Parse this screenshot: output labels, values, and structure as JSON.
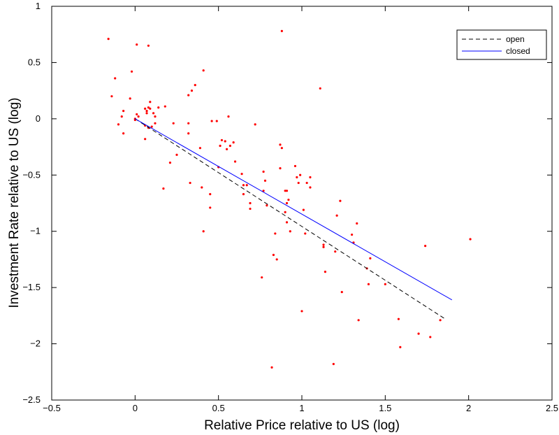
{
  "chart_data": {
    "type": "scatter",
    "xlabel": "Relative Price relative to US (log)",
    "ylabel": "Investment Rate relative to US (log)",
    "xlim": [
      -0.5,
      2.5
    ],
    "ylim": [
      -2.5,
      1
    ],
    "xticks": [
      -0.5,
      0,
      0.5,
      1,
      1.5,
      2,
      2.5
    ],
    "yticks": [
      -2.5,
      -2,
      -1.5,
      -1,
      -0.5,
      0,
      0.5,
      1
    ],
    "xtick_labels": [
      "−0.5",
      "0",
      "0.5",
      "1",
      "1.5",
      "2",
      "2.5"
    ],
    "ytick_labels": [
      "−2.5",
      "−2",
      "−1.5",
      "−1",
      "−0.5",
      "0",
      "0.5",
      "1"
    ],
    "grid": false,
    "legend_position": "top-right",
    "colors": {
      "points": "#ff0000",
      "open": "#000000",
      "closed": "#0000ff"
    },
    "series": [
      {
        "kind": "points",
        "points": [
          [
            -0.16,
            0.71
          ],
          [
            -0.14,
            0.2
          ],
          [
            -0.12,
            0.36
          ],
          [
            -0.1,
            -0.05
          ],
          [
            -0.08,
            0.02
          ],
          [
            -0.07,
            0.07
          ],
          [
            -0.07,
            -0.13
          ],
          [
            -0.03,
            0.18
          ],
          [
            -0.02,
            0.42
          ],
          [
            0.0,
            0.0
          ],
          [
            0.0,
            -0.01
          ],
          [
            0.01,
            0.04
          ],
          [
            0.01,
            0.66
          ],
          [
            0.02,
            0.02
          ],
          [
            0.06,
            -0.06
          ],
          [
            0.06,
            0.09
          ],
          [
            0.06,
            -0.18
          ],
          [
            0.07,
            0.07
          ],
          [
            0.07,
            0.05
          ],
          [
            0.08,
            0.1
          ],
          [
            0.08,
            0.65
          ],
          [
            0.08,
            -0.08
          ],
          [
            0.09,
            0.15
          ],
          [
            0.09,
            0.09
          ],
          [
            0.1,
            -0.07
          ],
          [
            0.11,
            0.05
          ],
          [
            0.12,
            0.02
          ],
          [
            0.12,
            -0.04
          ],
          [
            0.14,
            0.1
          ],
          [
            0.17,
            -0.62
          ],
          [
            0.18,
            0.11
          ],
          [
            0.21,
            -0.39
          ],
          [
            0.23,
            -0.04
          ],
          [
            0.25,
            -0.32
          ],
          [
            0.32,
            0.21
          ],
          [
            0.32,
            -0.04
          ],
          [
            0.32,
            -0.13
          ],
          [
            0.33,
            -0.57
          ],
          [
            0.34,
            0.25
          ],
          [
            0.36,
            0.3
          ],
          [
            0.39,
            -0.26
          ],
          [
            0.4,
            -0.61
          ],
          [
            0.41,
            -1.0
          ],
          [
            0.41,
            0.43
          ],
          [
            0.45,
            -0.67
          ],
          [
            0.45,
            -0.79
          ],
          [
            0.46,
            -0.02
          ],
          [
            0.49,
            -0.02
          ],
          [
            0.5,
            -0.43
          ],
          [
            0.51,
            -0.24
          ],
          [
            0.52,
            -0.19
          ],
          [
            0.54,
            -0.2
          ],
          [
            0.55,
            -0.27
          ],
          [
            0.56,
            0.02
          ],
          [
            0.57,
            -0.24
          ],
          [
            0.59,
            -0.21
          ],
          [
            0.6,
            -0.38
          ],
          [
            0.64,
            -0.49
          ],
          [
            0.65,
            -0.59
          ],
          [
            0.65,
            -0.67
          ],
          [
            0.67,
            -0.59
          ],
          [
            0.69,
            -0.75
          ],
          [
            0.69,
            -0.8
          ],
          [
            0.72,
            -0.05
          ],
          [
            0.76,
            -1.41
          ],
          [
            0.77,
            -0.47
          ],
          [
            0.77,
            -0.64
          ],
          [
            0.78,
            -0.55
          ],
          [
            0.79,
            -0.77
          ],
          [
            0.82,
            -2.21
          ],
          [
            0.83,
            -1.21
          ],
          [
            0.84,
            -1.02
          ],
          [
            0.85,
            -1.25
          ],
          [
            0.87,
            -0.44
          ],
          [
            0.87,
            -0.23
          ],
          [
            0.88,
            0.78
          ],
          [
            0.88,
            -0.26
          ],
          [
            0.9,
            -0.64
          ],
          [
            0.9,
            -0.83
          ],
          [
            0.91,
            -0.64
          ],
          [
            0.91,
            -0.75
          ],
          [
            0.91,
            -0.92
          ],
          [
            0.92,
            -0.72
          ],
          [
            0.93,
            -1.0
          ],
          [
            0.96,
            -0.42
          ],
          [
            0.97,
            -0.52
          ],
          [
            0.98,
            -0.57
          ],
          [
            0.99,
            -0.5
          ],
          [
            1.0,
            -1.71
          ],
          [
            1.01,
            -0.81
          ],
          [
            1.02,
            -1.02
          ],
          [
            1.03,
            -0.57
          ],
          [
            1.05,
            -0.52
          ],
          [
            1.05,
            -0.61
          ],
          [
            1.11,
            0.27
          ],
          [
            1.13,
            -1.12
          ],
          [
            1.13,
            -1.14
          ],
          [
            1.14,
            -1.36
          ],
          [
            1.19,
            -2.18
          ],
          [
            1.2,
            -1.18
          ],
          [
            1.21,
            -0.86
          ],
          [
            1.23,
            -0.73
          ],
          [
            1.24,
            -1.54
          ],
          [
            1.3,
            -1.03
          ],
          [
            1.31,
            -1.1
          ],
          [
            1.33,
            -0.93
          ],
          [
            1.34,
            -1.79
          ],
          [
            1.39,
            -1.33
          ],
          [
            1.4,
            -1.47
          ],
          [
            1.41,
            -1.24
          ],
          [
            1.5,
            -1.47
          ],
          [
            1.58,
            -1.78
          ],
          [
            1.59,
            -2.03
          ],
          [
            1.7,
            -1.91
          ],
          [
            1.74,
            -1.13
          ],
          [
            1.77,
            -1.94
          ],
          [
            1.83,
            -1.79
          ],
          [
            2.01,
            -1.07
          ]
        ]
      },
      {
        "name": "open",
        "kind": "line",
        "style": "dashed",
        "x": [
          0,
          1.86
        ],
        "y": [
          0,
          -1.78
        ]
      },
      {
        "name": "closed",
        "kind": "line",
        "style": "solid",
        "x": [
          0,
          1.9
        ],
        "y": [
          0,
          -1.61
        ]
      }
    ]
  }
}
